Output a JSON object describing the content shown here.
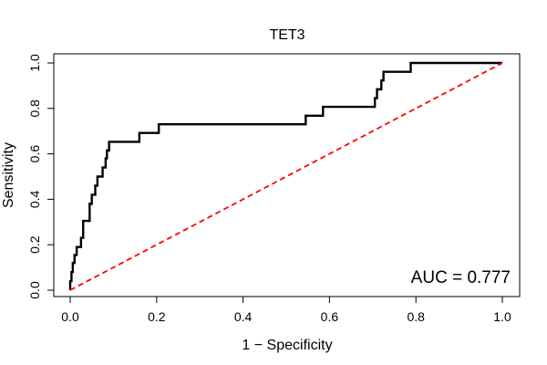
{
  "chart_data": {
    "type": "line",
    "title": "TET3",
    "xlabel": "1 − Specificity",
    "ylabel": "Sensitivity",
    "xlim": [
      0,
      1
    ],
    "ylim": [
      0,
      1
    ],
    "x_ticks": [
      "0.0",
      "0.2",
      "0.4",
      "0.6",
      "0.8",
      "1.0"
    ],
    "y_ticks": [
      "0.0",
      "0.2",
      "0.4",
      "0.6",
      "0.8",
      "1.0"
    ],
    "grid": false,
    "annotation": "AUC = 0.777",
    "series": [
      {
        "style": "solid",
        "color": "#000000",
        "x": [
          0.0,
          0.0,
          0.003,
          0.003,
          0.006,
          0.006,
          0.01,
          0.01,
          0.015,
          0.015,
          0.025,
          0.025,
          0.03,
          0.03,
          0.045,
          0.045,
          0.05,
          0.05,
          0.058,
          0.058,
          0.063,
          0.063,
          0.075,
          0.075,
          0.082,
          0.082,
          0.085,
          0.085,
          0.09,
          0.09,
          0.16,
          0.16,
          0.205,
          0.205,
          0.545,
          0.545,
          0.585,
          0.585,
          0.705,
          0.705,
          0.71,
          0.71,
          0.72,
          0.72,
          0.725,
          0.725,
          0.788,
          0.788,
          1.0
        ],
        "y": [
          0.0,
          0.04,
          0.04,
          0.08,
          0.08,
          0.12,
          0.12,
          0.155,
          0.155,
          0.19,
          0.19,
          0.23,
          0.23,
          0.305,
          0.305,
          0.38,
          0.38,
          0.42,
          0.42,
          0.46,
          0.46,
          0.5,
          0.5,
          0.54,
          0.54,
          0.58,
          0.58,
          0.615,
          0.615,
          0.653,
          0.653,
          0.692,
          0.692,
          0.73,
          0.73,
          0.768,
          0.768,
          0.807,
          0.807,
          0.845,
          0.845,
          0.884,
          0.884,
          0.923,
          0.923,
          0.961,
          0.961,
          1.0,
          1.0
        ]
      },
      {
        "style": "dashed",
        "color": "#ff0000",
        "x": [
          0,
          1
        ],
        "y": [
          0,
          1
        ]
      }
    ]
  }
}
